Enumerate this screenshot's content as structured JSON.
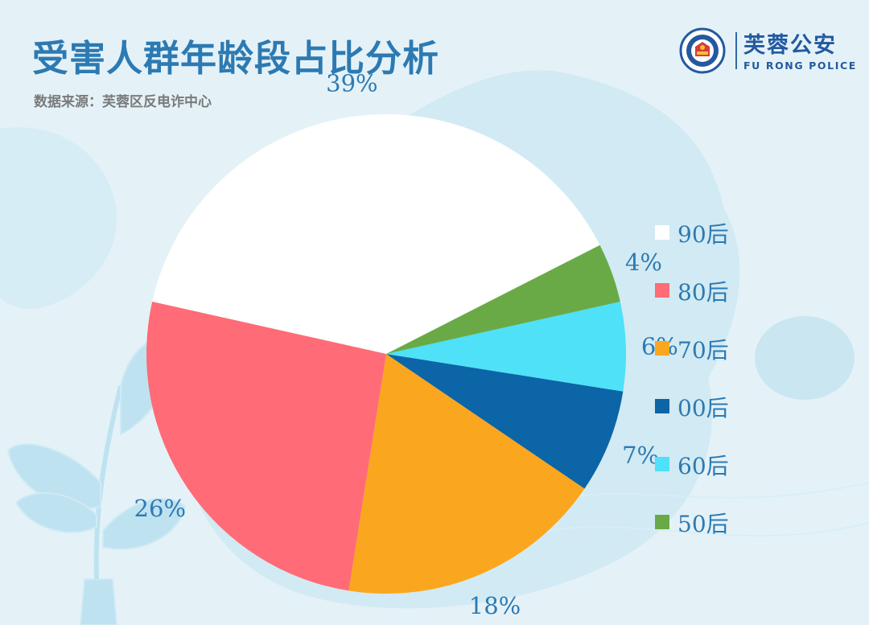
{
  "header": {
    "title": "受害人群年龄段占比分析",
    "source": "数据来源：芙蓉区反电诈中心"
  },
  "logo": {
    "name_cn": "芙蓉公安",
    "name_en": "FU RONG POLICE"
  },
  "chart_data": {
    "type": "pie",
    "title": "受害人群年龄段占比分析",
    "slices": [
      {
        "label": "90后",
        "value": 39,
        "display": "39%",
        "color": "#ffffff"
      },
      {
        "label": "80后",
        "value": 26,
        "display": "26%",
        "color": "#ff6b76"
      },
      {
        "label": "70后",
        "value": 18,
        "display": "18%",
        "color": "#fba61f"
      },
      {
        "label": "00后",
        "value": 7,
        "display": "7%",
        "color": "#0b65a6"
      },
      {
        "label": "60后",
        "value": 6,
        "display": "6%",
        "color": "#4ee1f8"
      },
      {
        "label": "50后",
        "value": 4,
        "display": "4%",
        "color": "#6aaa46"
      }
    ],
    "legend_position": "right",
    "label_color": "#2d7ab2"
  }
}
